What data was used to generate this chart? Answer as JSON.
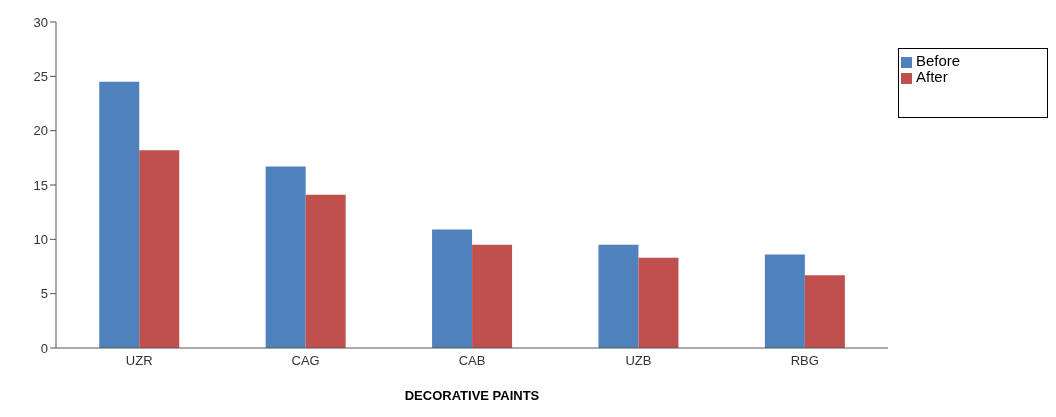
{
  "chart_data": {
    "type": "bar",
    "xlabel": "DECORATIVE PAINTS",
    "categories": [
      "UZR",
      "CAG",
      "CAB",
      "UZB",
      "RBG"
    ],
    "series": [
      {
        "name": "Before",
        "color": "#4f81bd",
        "values": [
          24.5,
          16.7,
          10.9,
          9.5,
          8.6
        ]
      },
      {
        "name": "After",
        "color": "#c0504d",
        "values": [
          18.2,
          14.1,
          9.5,
          8.3,
          6.7
        ]
      }
    ],
    "ylim": [
      0,
      30
    ],
    "yticks": [
      0,
      5,
      10,
      15,
      20,
      25,
      30
    ],
    "grid": false,
    "legend": "top right"
  }
}
